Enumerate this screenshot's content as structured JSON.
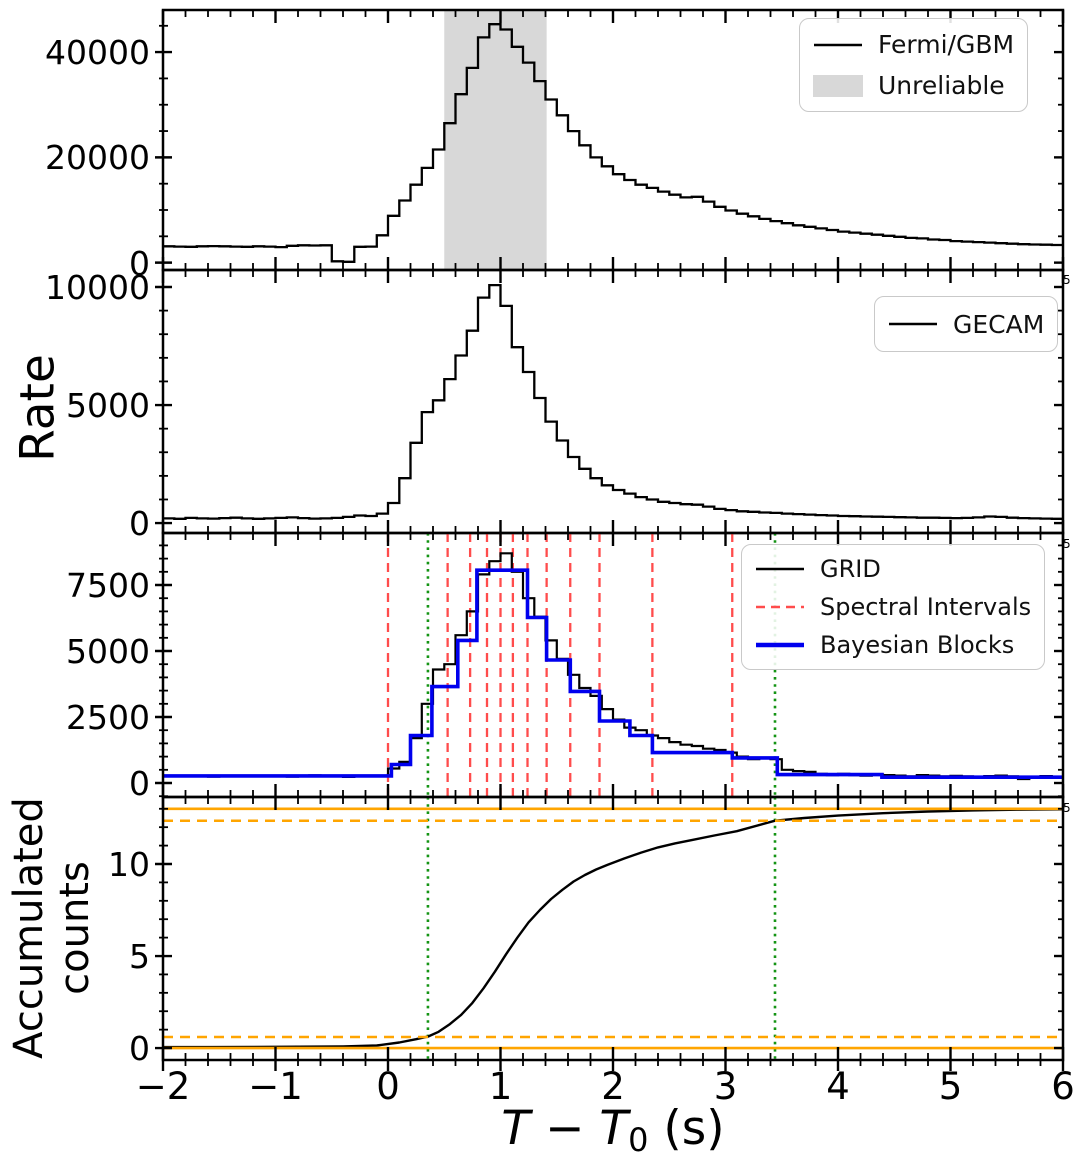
{
  "figure": {
    "ylabel_rate": "Rate",
    "ylabel_acc_line1": "Accumulated",
    "ylabel_acc_line2": "counts",
    "xlabel": {
      "t1": "T",
      "minus": "−",
      "t2": "T",
      "sub": "0",
      "unit": "(s)"
    },
    "edge_label": "5",
    "colors": {
      "red": "#ff4c4c",
      "green": "#149414",
      "blue": "#0000ee",
      "orange": "#ffa500",
      "gray_band": "#d8d8d8",
      "black": "#000000"
    }
  },
  "axis": {
    "xlim": [
      -2,
      6
    ],
    "xticks": [
      -2,
      -1,
      0,
      1,
      2,
      3,
      4,
      5,
      6
    ],
    "xtick_labels": [
      "−2",
      "−1",
      "0",
      "1",
      "2",
      "3",
      "4",
      "5",
      "6"
    ],
    "xminor_step": 0.2
  },
  "chart_data": [
    {
      "type": "step",
      "name": "fermi-gbm",
      "ylim": [
        -1400,
        48000
      ],
      "yticks": [
        {
          "v": 0,
          "t": "0"
        },
        {
          "v": 20000,
          "t": "20000"
        },
        {
          "v": 40000,
          "t": "40000"
        }
      ],
      "yminor": 5000,
      "band": {
        "x0": 0.5,
        "x1": 1.41,
        "color": "#d8d8d8"
      },
      "hist": {
        "x0": -2,
        "dx": 0.1,
        "color": "#000000",
        "lw": 2.3,
        "values": [
          3100,
          3050,
          3000,
          3100,
          3150,
          3100,
          3050,
          3000,
          3100,
          3050,
          2950,
          3200,
          3300,
          3250,
          3300,
          250,
          150,
          3000,
          3050,
          5200,
          8900,
          11800,
          14800,
          18000,
          21500,
          26500,
          32000,
          37000,
          42800,
          45300,
          44300,
          41000,
          38000,
          34500,
          31000,
          28000,
          25000,
          22300,
          20000,
          18300,
          16800,
          15700,
          14800,
          14200,
          13500,
          12900,
          12400,
          12500,
          11600,
          10600,
          9900,
          9300,
          8800,
          8300,
          7900,
          7500,
          7100,
          6800,
          6500,
          6200,
          5900,
          5700,
          5500,
          5300,
          5100,
          4900,
          4700,
          4600,
          4400,
          4300,
          4100,
          4000,
          3900,
          3800,
          3700,
          3600,
          3500,
          3450,
          3400,
          3350
        ]
      },
      "legend": [
        {
          "label": "Fermi/GBM",
          "sample": "line",
          "color": "#000000",
          "lw": 2.5,
          "dash": "none"
        },
        {
          "label": "Unreliable",
          "sample": "patch",
          "color": "#d8d8d8"
        }
      ]
    },
    {
      "type": "step",
      "name": "gecam",
      "ylim": [
        -420,
        10720
      ],
      "yticks": [
        {
          "v": 0,
          "t": "0"
        },
        {
          "v": 5000,
          "t": "5000"
        },
        {
          "v": 10000,
          "t": "10000"
        }
      ],
      "yminor": 1000,
      "hist": {
        "x0": -2,
        "dx": 0.1,
        "color": "#000000",
        "lw": 2.3,
        "values": [
          200,
          180,
          220,
          200,
          190,
          210,
          230,
          200,
          180,
          200,
          220,
          240,
          210,
          190,
          200,
          220,
          260,
          320,
          300,
          400,
          850,
          1900,
          3400,
          4700,
          5200,
          6100,
          7100,
          8150,
          9550,
          10080,
          9200,
          7450,
          6400,
          5300,
          4300,
          3500,
          2800,
          2300,
          1900,
          1600,
          1400,
          1250,
          1100,
          1000,
          900,
          850,
          800,
          780,
          700,
          600,
          550,
          500,
          480,
          450,
          430,
          400,
          380,
          360,
          340,
          320,
          300,
          290,
          280,
          270,
          260,
          250,
          240,
          230,
          230,
          220,
          210,
          220,
          240,
          280,
          260,
          230,
          210,
          200,
          190,
          180
        ]
      },
      "legend": [
        {
          "label": "GECAM",
          "sample": "line",
          "color": "#000000",
          "lw": 2.5,
          "dash": "none"
        }
      ]
    },
    {
      "type": "step",
      "name": "grid",
      "ylim": [
        -530,
        9470
      ],
      "yticks": [
        {
          "v": 0,
          "t": "0"
        },
        {
          "v": 2500,
          "t": "2500"
        },
        {
          "v": 5000,
          "t": "5000"
        },
        {
          "v": 7500,
          "t": "7500"
        }
      ],
      "yminor": 500,
      "vlines": [
        {
          "name": "spectral-interval-lines",
          "color": "#ff4c4c",
          "dash": "9 6",
          "lw": 2.3,
          "xs": [
            0.0,
            0.53,
            0.73,
            0.88,
            1.0,
            1.11,
            1.24,
            1.41,
            1.62,
            1.88,
            2.35,
            3.06
          ]
        },
        {
          "name": "t-boundary-lines",
          "color": "#149414",
          "dash": "2.6 4.6",
          "lw": 2.6,
          "xs": [
            0.355,
            3.44
          ]
        }
      ],
      "hist": {
        "x0": -2,
        "dx": 0.1,
        "color": "#000000",
        "lw": 2.2,
        "values": [
          280,
          250,
          270,
          260,
          240,
          260,
          280,
          250,
          270,
          260,
          250,
          240,
          270,
          290,
          260,
          250,
          230,
          260,
          280,
          270,
          550,
          800,
          1700,
          3000,
          4300,
          4500,
          5600,
          6500,
          7900,
          8400,
          8700,
          8000,
          7000,
          6300,
          5400,
          4700,
          4100,
          3600,
          3300,
          2800,
          2400,
          2100,
          2000,
          1800,
          1700,
          1550,
          1450,
          1400,
          1300,
          1250,
          1150,
          1000,
          900,
          950,
          900,
          500,
          450,
          420,
          350,
          300,
          350,
          300,
          280,
          320,
          300,
          280,
          250,
          300,
          280,
          250,
          270,
          250,
          230,
          260,
          280,
          250,
          150,
          220,
          260,
          240
        ]
      },
      "blocks": {
        "color": "#0000ee",
        "lw": 3.6,
        "edges": [
          -2,
          0.03,
          0.2,
          0.39,
          0.62,
          0.79,
          1.24,
          1.41,
          1.62,
          1.88,
          2.15,
          2.35,
          3.06,
          3.46,
          4.39,
          6.0
        ],
        "values": [
          270,
          700,
          1800,
          3650,
          5400,
          8060,
          6270,
          4660,
          3470,
          2350,
          1800,
          1150,
          950,
          320,
          220
        ]
      },
      "legend": [
        {
          "label": "GRID",
          "sample": "line",
          "color": "#000000",
          "lw": 2.5,
          "dash": "none"
        },
        {
          "label": "Spectral Intervals",
          "sample": "line",
          "color": "#ff4c4c",
          "lw": 2.5,
          "dash": "9 6"
        },
        {
          "label": "Bayesian Blocks",
          "sample": "line",
          "color": "#0000ee",
          "lw": 4.5,
          "dash": "none"
        }
      ]
    },
    {
      "type": "line",
      "name": "accumulated-counts",
      "ylim": [
        -0.65,
        13.64
      ],
      "yticks": [
        {
          "v": 0,
          "t": "0"
        },
        {
          "v": 5,
          "t": "5"
        },
        {
          "v": 10,
          "t": "10"
        }
      ],
      "yminor": 1,
      "vlines": [
        {
          "name": "t-boundary-lines",
          "color": "#149414",
          "dash": "2.6 4.6",
          "lw": 2.6,
          "xs": [
            0.355,
            3.44
          ]
        }
      ],
      "hlines": {
        "color": "#ffa500",
        "lw": 2.6,
        "items": [
          {
            "y": 13.0,
            "dash": "none"
          },
          {
            "y": 12.35,
            "dash": "10 7"
          },
          {
            "y": 0.6,
            "dash": "10 7"
          },
          {
            "y": 0.0,
            "dash": "none"
          }
        ]
      },
      "curve": {
        "color": "#000000",
        "lw": 2.4,
        "x": [
          -2,
          -1.6,
          -1.2,
          -0.8,
          -0.4,
          -0.1,
          0.1,
          0.25,
          0.355,
          0.45,
          0.55,
          0.65,
          0.75,
          0.85,
          0.95,
          1.05,
          1.15,
          1.25,
          1.35,
          1.45,
          1.55,
          1.65,
          1.75,
          1.85,
          1.95,
          2.1,
          2.25,
          2.4,
          2.55,
          2.7,
          2.9,
          3.1,
          3.44,
          3.7,
          4.0,
          4.4,
          4.8,
          5.2,
          5.6,
          6.0
        ],
        "y": [
          0.05,
          0.05,
          0.06,
          0.07,
          0.09,
          0.14,
          0.3,
          0.48,
          0.62,
          0.88,
          1.3,
          1.8,
          2.45,
          3.25,
          4.15,
          5.1,
          6.0,
          6.83,
          7.5,
          8.1,
          8.6,
          9.05,
          9.4,
          9.7,
          9.95,
          10.3,
          10.62,
          10.9,
          11.12,
          11.3,
          11.55,
          11.78,
          12.35,
          12.5,
          12.63,
          12.76,
          12.85,
          12.91,
          12.95,
          12.97
        ]
      }
    }
  ]
}
